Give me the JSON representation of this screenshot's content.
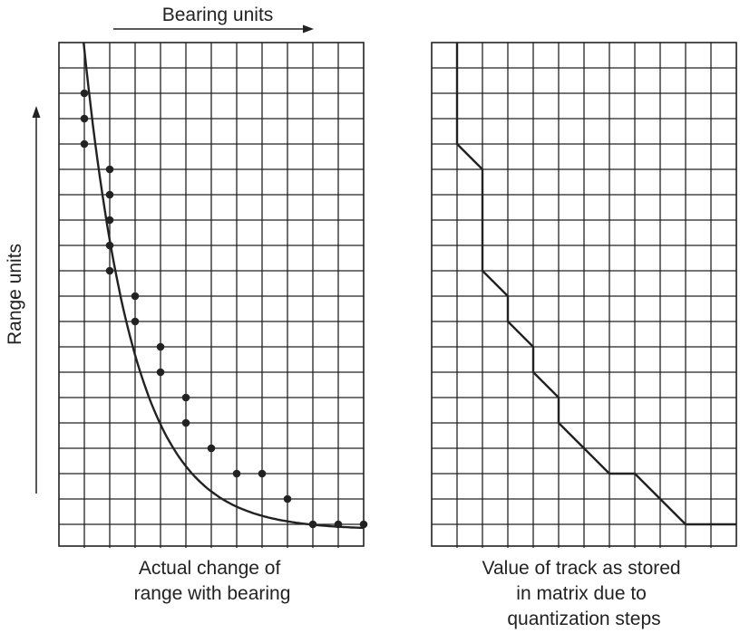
{
  "x_axis_label": "Bearing units",
  "y_axis_label": "Range units",
  "left_panel": {
    "caption": [
      "Actual change of",
      "range with bearing"
    ],
    "columns": 12,
    "rows": 20,
    "samples": [
      [
        1,
        2
      ],
      [
        1,
        3
      ],
      [
        1,
        4
      ],
      [
        2,
        5
      ],
      [
        2,
        6
      ],
      [
        2,
        7
      ],
      [
        2,
        8
      ],
      [
        2,
        9
      ],
      [
        3,
        10
      ],
      [
        3,
        11
      ],
      [
        4,
        12
      ],
      [
        4,
        13
      ],
      [
        5,
        14
      ],
      [
        5,
        15
      ],
      [
        6,
        16
      ],
      [
        7,
        17
      ],
      [
        8,
        17
      ],
      [
        9,
        18
      ],
      [
        10,
        19
      ],
      [
        11,
        19
      ],
      [
        12,
        19
      ]
    ]
  },
  "right_panel": {
    "caption": [
      "Value of track as stored",
      "in matrix due to",
      "quantization steps"
    ],
    "columns": 12,
    "rows": 20,
    "track": [
      [
        1,
        0
      ],
      [
        1,
        4
      ],
      [
        2,
        5
      ],
      [
        2,
        9
      ],
      [
        3,
        10
      ],
      [
        3,
        11
      ],
      [
        4,
        12
      ],
      [
        4,
        13
      ],
      [
        5,
        14
      ],
      [
        5,
        15
      ],
      [
        6,
        16
      ],
      [
        7,
        17
      ],
      [
        8,
        17
      ],
      [
        10,
        19
      ],
      [
        12,
        19
      ]
    ]
  }
}
